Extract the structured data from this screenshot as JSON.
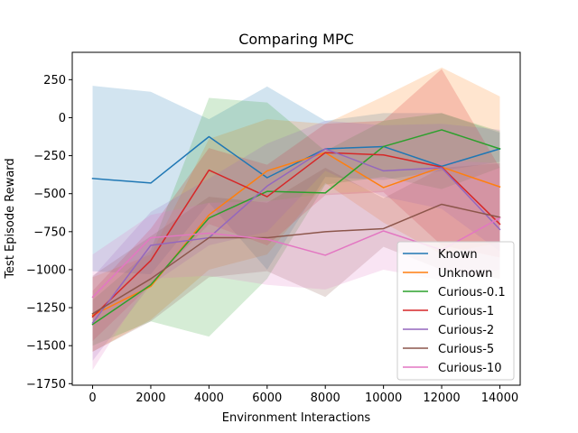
{
  "chart_data": {
    "type": "line",
    "title": "Comparing MPC",
    "xlabel": "Environment Interactions",
    "ylabel": "Test Episode Reward",
    "x": [
      0,
      2000,
      4000,
      6000,
      8000,
      10000,
      12000,
      14000
    ],
    "xlim": [
      -700,
      14700
    ],
    "ylim": [
      -1760,
      430
    ],
    "xticks": [
      0,
      2000,
      4000,
      6000,
      8000,
      10000,
      12000,
      14000
    ],
    "yticks": [
      -1750,
      -1500,
      -1250,
      -1000,
      -750,
      -500,
      -250,
      0,
      250
    ],
    "legend_placement": "lower-right",
    "grid": false,
    "series": [
      {
        "name": "Known",
        "color": "#1f77b4",
        "values": [
          -400,
          -430,
          -125,
          -395,
          -205,
          -190,
          -320,
          -205
        ],
        "lower": [
          -1010,
          -1030,
          -560,
          -1000,
          -390,
          -410,
          -350,
          -290
        ],
        "upper": [
          210,
          170,
          -10,
          205,
          -20,
          30,
          30,
          -100
        ]
      },
      {
        "name": "Unknown",
        "color": "#ff7f0e",
        "values": [
          -1300,
          -1110,
          -640,
          -350,
          -230,
          -460,
          -325,
          -455
        ],
        "lower": [
          -1540,
          -1330,
          -1000,
          -900,
          -430,
          -690,
          -900,
          -820
        ],
        "upper": [
          -1050,
          -900,
          -140,
          -10,
          -40,
          140,
          330,
          140
        ]
      },
      {
        "name": "Curious-0.1",
        "color": "#2ca02c",
        "values": [
          -1360,
          -1100,
          -660,
          -485,
          -495,
          -190,
          -80,
          -205
        ],
        "lower": [
          -1500,
          -1340,
          -1440,
          -1060,
          -440,
          -390,
          -470,
          -330
        ],
        "upper": [
          -1200,
          -870,
          130,
          100,
          -220,
          -20,
          30,
          -90
        ]
      },
      {
        "name": "Curious-1",
        "color": "#d62728",
        "values": [
          -1310,
          -940,
          -345,
          -520,
          -230,
          -245,
          -325,
          -700
        ],
        "lower": [
          -1470,
          -1100,
          -700,
          -840,
          -510,
          -490,
          -840,
          -920
        ],
        "upper": [
          -1140,
          -730,
          -200,
          -310,
          -40,
          -20,
          320,
          -330
        ]
      },
      {
        "name": "Curious-2",
        "color": "#9467bd",
        "values": [
          -1350,
          -840,
          -790,
          -450,
          -205,
          -350,
          -330,
          -735
        ],
        "lower": [
          -1600,
          -1100,
          -840,
          -750,
          -350,
          -520,
          -600,
          -880
        ],
        "upper": [
          -1050,
          -620,
          -400,
          -170,
          -20,
          -50,
          -40,
          -80
        ]
      },
      {
        "name": "Curious-5",
        "color": "#8c564b",
        "values": [
          -1290,
          -1060,
          -790,
          -790,
          -750,
          -730,
          -570,
          -655
        ],
        "lower": [
          -1540,
          -1340,
          -1050,
          -1010,
          -1180,
          -850,
          -1000,
          -1060
        ],
        "upper": [
          -1040,
          -780,
          -520,
          -560,
          -330,
          -530,
          -330,
          -300
        ]
      },
      {
        "name": "Curious-10",
        "color": "#e377c2",
        "values": [
          -1180,
          -790,
          -760,
          -800,
          -905,
          -745,
          -870,
          -660
        ],
        "lower": [
          -1660,
          -1060,
          -1040,
          -1100,
          -1130,
          -1000,
          -1070,
          -1000
        ],
        "upper": [
          -900,
          -640,
          -560,
          -550,
          -500,
          -480,
          -280,
          -300
        ]
      }
    ]
  }
}
